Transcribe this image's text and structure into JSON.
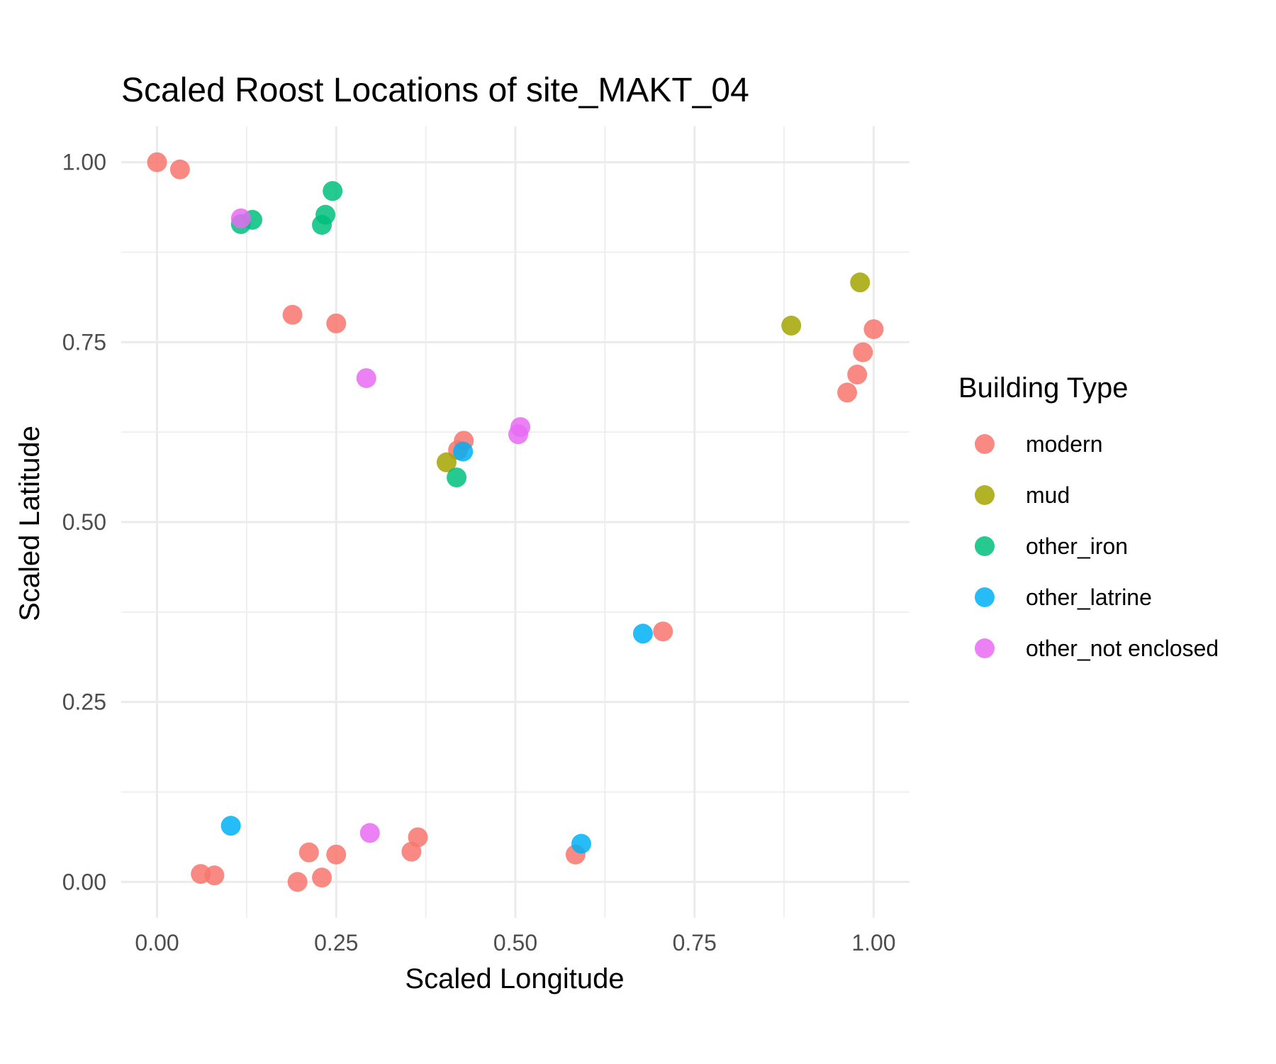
{
  "chart_data": {
    "type": "scatter",
    "title": "Scaled Roost Locations of site_MAKT_04",
    "xlabel": "Scaled Longitude",
    "ylabel": "Scaled Latitude",
    "xlim": [
      -0.05,
      1.05
    ],
    "ylim": [
      -0.05,
      1.05
    ],
    "x_ticks": [
      0,
      0.25,
      0.5,
      0.75,
      1
    ],
    "x_tick_labels": [
      "0.00",
      "0.25",
      "0.50",
      "0.75",
      "1.00"
    ],
    "y_ticks": [
      0,
      0.25,
      0.5,
      0.75,
      1
    ],
    "y_tick_labels": [
      "0.00",
      "0.25",
      "0.50",
      "0.75",
      "1.00"
    ],
    "grid": true,
    "legend": {
      "title": "Building Type",
      "position": "right"
    },
    "series": [
      {
        "name": "modern",
        "color": "#F8766D",
        "points": [
          [
            0.0,
            1.0
          ],
          [
            0.032,
            0.99
          ],
          [
            0.189,
            0.788
          ],
          [
            0.25,
            0.776
          ],
          [
            0.428,
            0.613
          ],
          [
            0.42,
            0.6
          ],
          [
            1.0,
            0.768
          ],
          [
            0.985,
            0.736
          ],
          [
            0.977,
            0.705
          ],
          [
            0.963,
            0.68
          ],
          [
            0.706,
            0.348
          ],
          [
            0.584,
            0.038
          ],
          [
            0.364,
            0.062
          ],
          [
            0.355,
            0.042
          ],
          [
            0.25,
            0.038
          ],
          [
            0.212,
            0.041
          ],
          [
            0.23,
            0.006
          ],
          [
            0.196,
            0.0
          ],
          [
            0.08,
            0.009
          ],
          [
            0.061,
            0.011
          ]
        ]
      },
      {
        "name": "mud",
        "color": "#A3A500",
        "points": [
          [
            0.981,
            0.833
          ],
          [
            0.885,
            0.773
          ],
          [
            0.404,
            0.583
          ]
        ]
      },
      {
        "name": "other_iron",
        "color": "#00BF7D",
        "points": [
          [
            0.245,
            0.96
          ],
          [
            0.235,
            0.927
          ],
          [
            0.23,
            0.913
          ],
          [
            0.133,
            0.92
          ],
          [
            0.117,
            0.914
          ],
          [
            0.418,
            0.562
          ]
        ]
      },
      {
        "name": "other_latrine",
        "color": "#00B0F6",
        "points": [
          [
            0.427,
            0.598
          ],
          [
            0.678,
            0.345
          ],
          [
            0.592,
            0.053
          ],
          [
            0.103,
            0.078
          ]
        ]
      },
      {
        "name": "other_not enclosed",
        "color": "#E76BF3",
        "points": [
          [
            0.117,
            0.922
          ],
          [
            0.292,
            0.7
          ],
          [
            0.507,
            0.632
          ],
          [
            0.504,
            0.622
          ],
          [
            0.297,
            0.068
          ]
        ]
      }
    ]
  }
}
